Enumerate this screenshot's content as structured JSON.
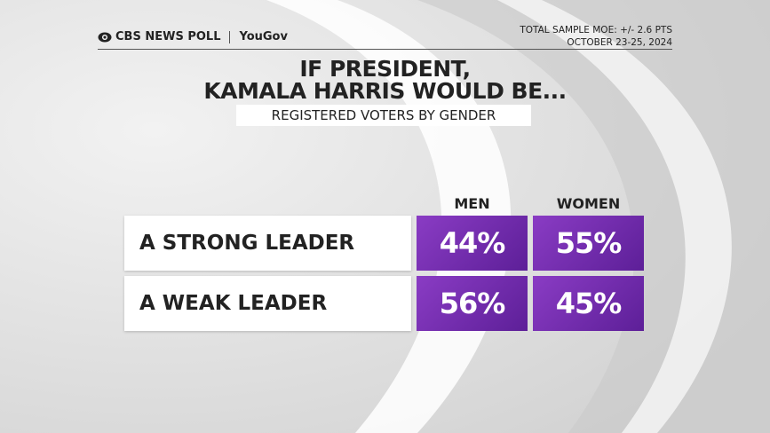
{
  "header": {
    "brand": "CBS NEWS POLL",
    "partner": "YouGov",
    "moe": "TOTAL SAMPLE MOE: +/- 2.6 PTS",
    "dates": "OCTOBER 23-25, 2024"
  },
  "title": {
    "line1": "IF PRESIDENT,",
    "line2": "KAMALA HARRIS WOULD BE..."
  },
  "subtitle": "REGISTERED VOTERS BY GENDER",
  "table": {
    "columns": [
      "MEN",
      "WOMEN"
    ],
    "rows": [
      {
        "label": "A STRONG LEADER",
        "cells": [
          "44%",
          "55%"
        ]
      },
      {
        "label": "A WEAK LEADER",
        "cells": [
          "56%",
          "45%"
        ]
      }
    ]
  }
}
